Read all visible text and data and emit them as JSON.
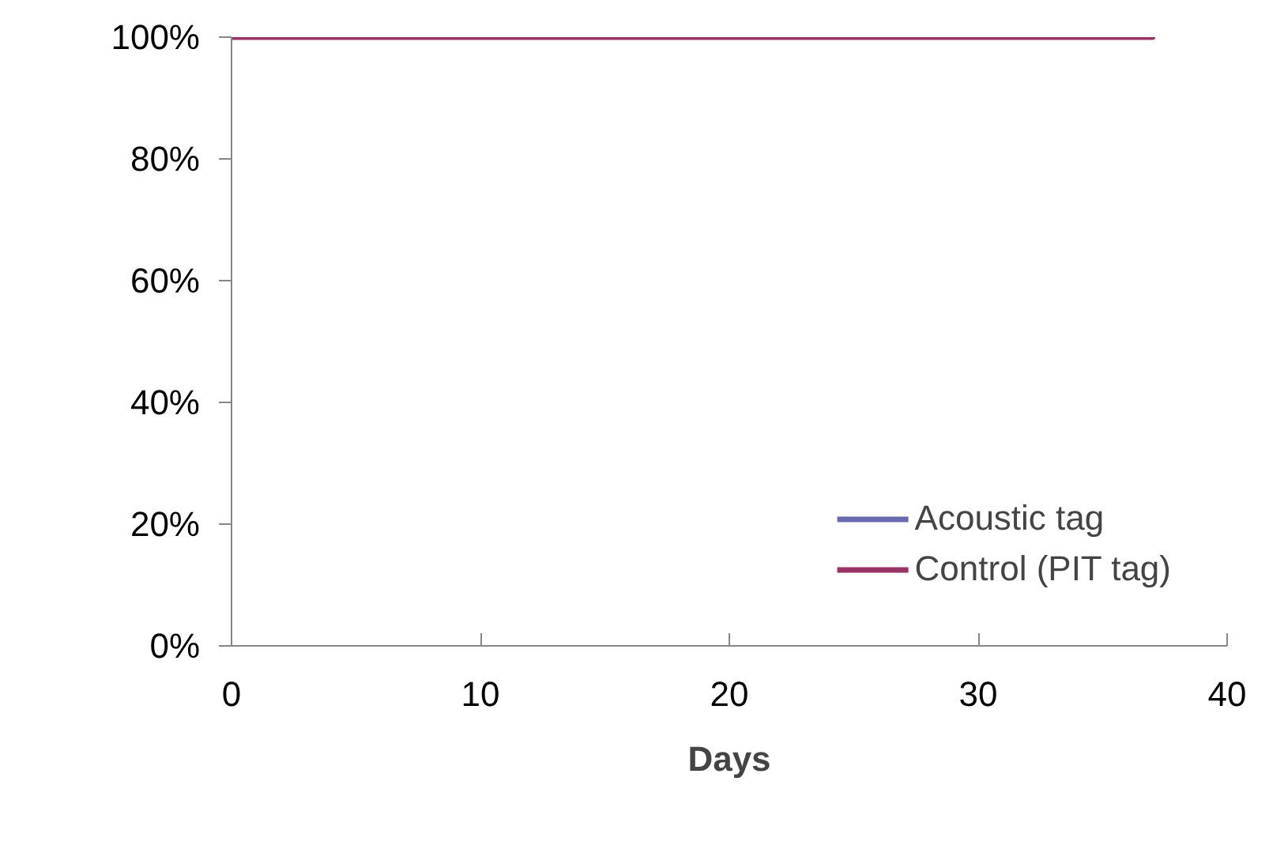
{
  "chart_data": {
    "type": "line",
    "xlabel": "Days",
    "x": [
      0,
      37
    ],
    "series": [
      {
        "name": "Acoustic tag",
        "color": "#6a6aae",
        "values": [
          null,
          null
        ]
      },
      {
        "name": "Control (PIT tag)",
        "color": "#993366",
        "values": [
          100,
          100
        ]
      }
    ],
    "xlim": [
      0,
      40
    ],
    "xticks": [
      0,
      10,
      20,
      30,
      40
    ],
    "ylim": [
      0,
      100
    ],
    "yticks": [
      {
        "value": 0,
        "label": "0%"
      },
      {
        "value": 20,
        "label": "20%"
      },
      {
        "value": 40,
        "label": "40%"
      },
      {
        "value": 60,
        "label": "60%"
      },
      {
        "value": 80,
        "label": "80%"
      },
      {
        "value": 100,
        "label": "100%"
      }
    ],
    "grid": false,
    "legend": "bottom right"
  }
}
